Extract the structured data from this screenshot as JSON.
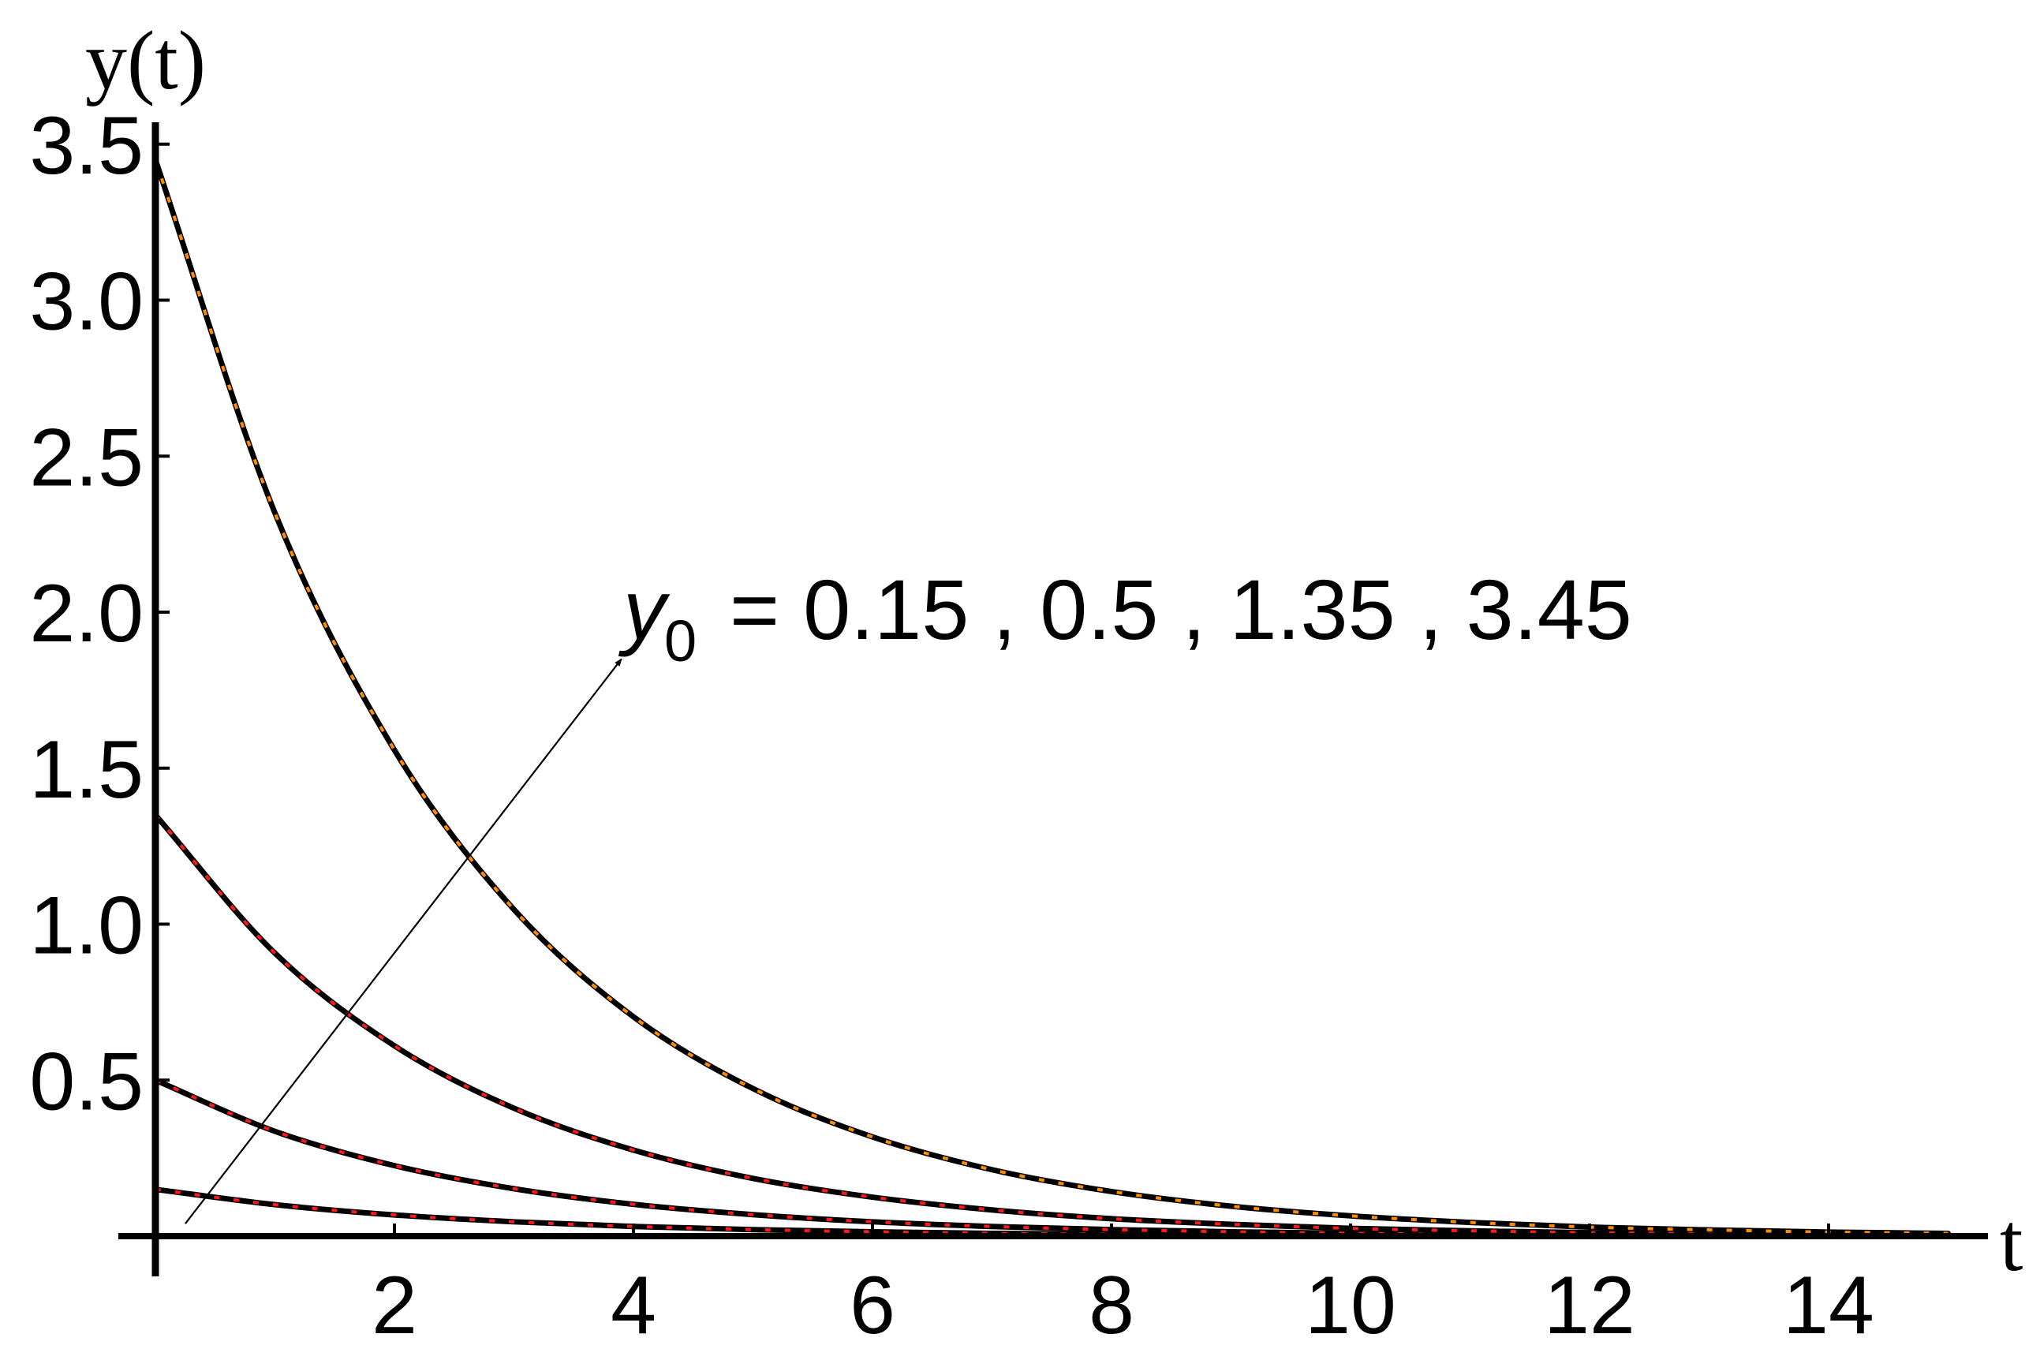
{
  "chart_data": {
    "type": "line",
    "title": "",
    "xlabel": "t",
    "ylabel": "y(t)",
    "xlim": [
      0,
      15.3
    ],
    "ylim": [
      -0.07,
      3.6
    ],
    "x_ticks": [
      2,
      4,
      6,
      8,
      10,
      12,
      14
    ],
    "x_tick_labels": [
      "2",
      "4",
      "6",
      "8",
      "10",
      "12",
      "14"
    ],
    "y_ticks": [
      0.5,
      1.0,
      1.5,
      2.0,
      2.5,
      3.0,
      3.5
    ],
    "y_tick_labels": [
      "0.5",
      "1.0",
      "1.5",
      "2.0",
      "2.5",
      "3.0",
      "3.5"
    ],
    "grid": false,
    "legend": "none",
    "annotation": {
      "var": "y",
      "sub": "0",
      "text": "= 0.15 , 0.5 , 1.35 , 3.45",
      "arrow_from": [
        0.25,
        0.04
      ],
      "arrow_to": [
        3.9,
        1.85
      ]
    },
    "x": [
      0,
      1,
      2,
      3,
      4,
      5,
      6,
      7,
      8,
      9,
      10,
      11,
      12,
      13,
      14,
      15
    ],
    "series": [
      {
        "initial_value": 0.15,
        "overlay_color": "#ff1a1a",
        "values": [
          0.15,
          0.101,
          0.068,
          0.046,
          0.031,
          0.021,
          0.014,
          0.009,
          0.006,
          0.004,
          0.003,
          0.002,
          0.001,
          0.001,
          0.0,
          0.0
        ]
      },
      {
        "initial_value": 0.5,
        "overlay_color": "#ff1a1a",
        "values": [
          0.5,
          0.336,
          0.226,
          0.152,
          0.102,
          0.069,
          0.046,
          0.031,
          0.021,
          0.014,
          0.009,
          0.006,
          0.004,
          0.003,
          0.002,
          0.001
        ]
      },
      {
        "initial_value": 1.35,
        "overlay_color": "#ff1a1a",
        "values": [
          1.35,
          0.907,
          0.61,
          0.41,
          0.276,
          0.185,
          0.125,
          0.084,
          0.056,
          0.038,
          0.025,
          0.017,
          0.011,
          0.008,
          0.005,
          0.003
        ]
      },
      {
        "initial_value": 3.45,
        "overlay_color": "#ff8c00",
        "values": [
          3.45,
          2.318,
          1.558,
          1.047,
          0.703,
          0.473,
          0.318,
          0.213,
          0.143,
          0.096,
          0.065,
          0.044,
          0.029,
          0.02,
          0.013,
          0.009
        ]
      }
    ]
  },
  "colors": {
    "curve": "#000000",
    "axis": "#000000",
    "background": "#ffffff"
  }
}
